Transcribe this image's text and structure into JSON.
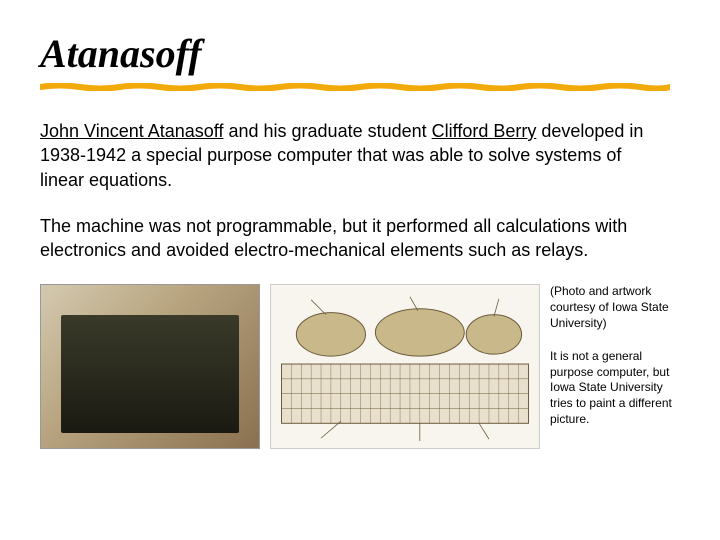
{
  "title": "Atanasoff",
  "underline_color": "#f2a90a",
  "paragraph1_prefix_link": "John Vincent Atanasoff",
  "paragraph1_mid": " and his graduate student ",
  "paragraph1_link2": "Clifford Berry",
  "paragraph1_rest": " developed in 1938-1942 a special purpose computer that was able to solve systems of linear equations.",
  "paragraph2": "The machine was not programmable, but it performed all calculations with electronics and avoided electro-mechanical elements such as relays.",
  "note1": "(Photo and artwork courtesy of Iowa State University)",
  "note2": "It is not a general purpose computer, but Iowa State University tries to paint a different picture.",
  "diagram": {
    "stroke": "#6b5a3a",
    "fill_light": "#e8e0cc",
    "fill_accent": "#c9b88a"
  }
}
